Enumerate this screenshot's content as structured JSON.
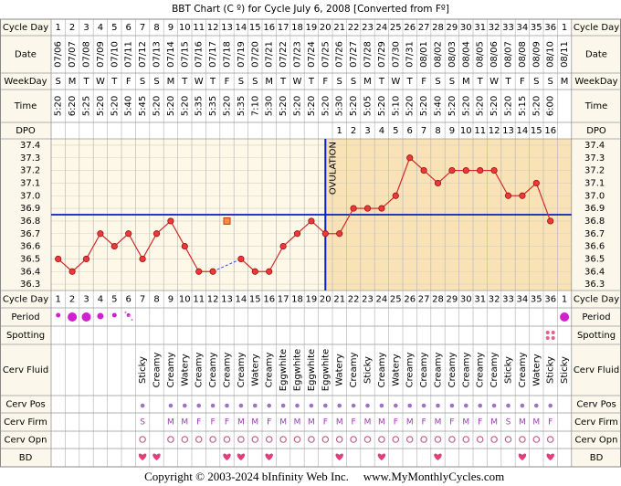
{
  "title": "BBT Chart (C º) for Cycle July 6, 2008  [Converted from Fº]",
  "row_labels": [
    "Cycle Day",
    "Date",
    "WeekDay",
    "Time",
    "DPO",
    "Cycle Day",
    "Period",
    "Spotting",
    "Cerv Fluid",
    "Cerv Pos",
    "Cerv Firm",
    "Cerv Opn",
    "BD"
  ],
  "cycle_day": [
    1,
    2,
    3,
    4,
    5,
    6,
    7,
    8,
    9,
    10,
    11,
    12,
    13,
    14,
    15,
    16,
    17,
    18,
    19,
    20,
    21,
    22,
    23,
    24,
    25,
    26,
    27,
    28,
    29,
    30,
    31,
    32,
    33,
    34,
    35,
    36,
    1
  ],
  "date": [
    "07/06",
    "07/07",
    "07/08",
    "07/09",
    "07/10",
    "07/11",
    "07/12",
    "07/13",
    "07/14",
    "07/15",
    "07/16",
    "07/17",
    "07/18",
    "07/19",
    "07/20",
    "07/21",
    "07/22",
    "07/23",
    "07/24",
    "07/25",
    "07/26",
    "07/27",
    "07/28",
    "07/29",
    "07/30",
    "07/31",
    "08/01",
    "08/02",
    "08/03",
    "08/04",
    "08/05",
    "08/06",
    "08/07",
    "08/08",
    "08/09",
    "08/10",
    "08/11"
  ],
  "weekday": [
    "S",
    "M",
    "T",
    "W",
    "T",
    "F",
    "S",
    "S",
    "M",
    "T",
    "W",
    "T",
    "F",
    "S",
    "S",
    "M",
    "T",
    "W",
    "T",
    "F",
    "S",
    "S",
    "M",
    "T",
    "W",
    "T",
    "F",
    "S",
    "S",
    "M",
    "T",
    "W",
    "T",
    "F",
    "S",
    "S",
    "M"
  ],
  "time": [
    "5:20",
    "6:20",
    "5:25",
    "5:20",
    "5:20",
    "5:40",
    "5:45",
    "5:20",
    "5:20",
    "5:20",
    "5:35",
    "5:35",
    "5:20",
    "5:35",
    "7:10",
    "5:30",
    "5:20",
    "5:20",
    "5:20",
    "5:20",
    "5:30",
    "5:20",
    "5:05",
    "5:20",
    "5:10",
    "5:20",
    "5:20",
    "5:40",
    "5:20",
    "5:20",
    "5:20",
    "5:20",
    "5:20",
    "5:15",
    "5:20",
    "6:00",
    null
  ],
  "dpo": [
    null,
    null,
    null,
    null,
    null,
    null,
    null,
    null,
    null,
    null,
    null,
    null,
    null,
    null,
    null,
    null,
    null,
    null,
    null,
    null,
    1,
    2,
    3,
    4,
    5,
    6,
    7,
    8,
    9,
    10,
    11,
    12,
    13,
    14,
    15,
    16,
    null
  ],
  "cerv_fluid": [
    null,
    null,
    null,
    null,
    null,
    null,
    "Sticky",
    "Creamy",
    "Creamy",
    "Watery",
    "Creamy",
    "Creamy",
    "Creamy",
    "Creamy",
    "Watery",
    "Creamy",
    "Eggwhite",
    "Eggwhite",
    "Eggwhite",
    "Eggwhite",
    "Watery",
    "Creamy",
    "Sticky",
    "Creamy",
    "Watery",
    "Creamy",
    "Creamy",
    "Creamy",
    "Creamy",
    "Creamy",
    "Creamy",
    "Creamy",
    "Sticky",
    "Creamy",
    "Watery",
    "Sticky",
    "Sticky"
  ],
  "cerv_firm": [
    null,
    null,
    null,
    null,
    null,
    null,
    "S",
    null,
    "M",
    "M",
    "F",
    "F",
    "F",
    "M",
    "M",
    "F",
    "M",
    "M",
    "M",
    "F",
    "M",
    "F",
    "M",
    "M",
    "F",
    "M",
    "F",
    "M",
    "F",
    "M",
    "F",
    "M",
    "S",
    "M",
    "M",
    "F",
    null
  ],
  "chart_data": {
    "type": "line",
    "color": "#d42a2a",
    "values": [
      36.5,
      36.4,
      36.5,
      36.7,
      36.6,
      36.7,
      36.5,
      36.7,
      36.8,
      36.6,
      36.4,
      36.4,
      36.8,
      36.5,
      36.4,
      36.4,
      36.6,
      36.7,
      36.8,
      36.7,
      36.7,
      36.9,
      36.9,
      36.9,
      37.0,
      37.3,
      37.2,
      37.1,
      37.2,
      37.2,
      37.2,
      37.2,
      37.0,
      37.0,
      37.1,
      36.8,
      null
    ],
    "discarded_index": 12,
    "ylim": [
      36.25,
      37.45
    ],
    "yticks": [
      37.4,
      37.3,
      37.2,
      37.1,
      {
        "value": 37.0,
        "label": "37.0"
      },
      36.9,
      36.8,
      36.7,
      36.6,
      36.5,
      36.4,
      36.3
    ],
    "coverline": 36.85,
    "ovulation_index": 19,
    "ovulation_label": "OVULATION",
    "grid": true
  },
  "footer": [
    "Copyright © 2003-2024 bInfinity Web Inc.",
    "www.MyMonthlyCycles.com"
  ]
}
